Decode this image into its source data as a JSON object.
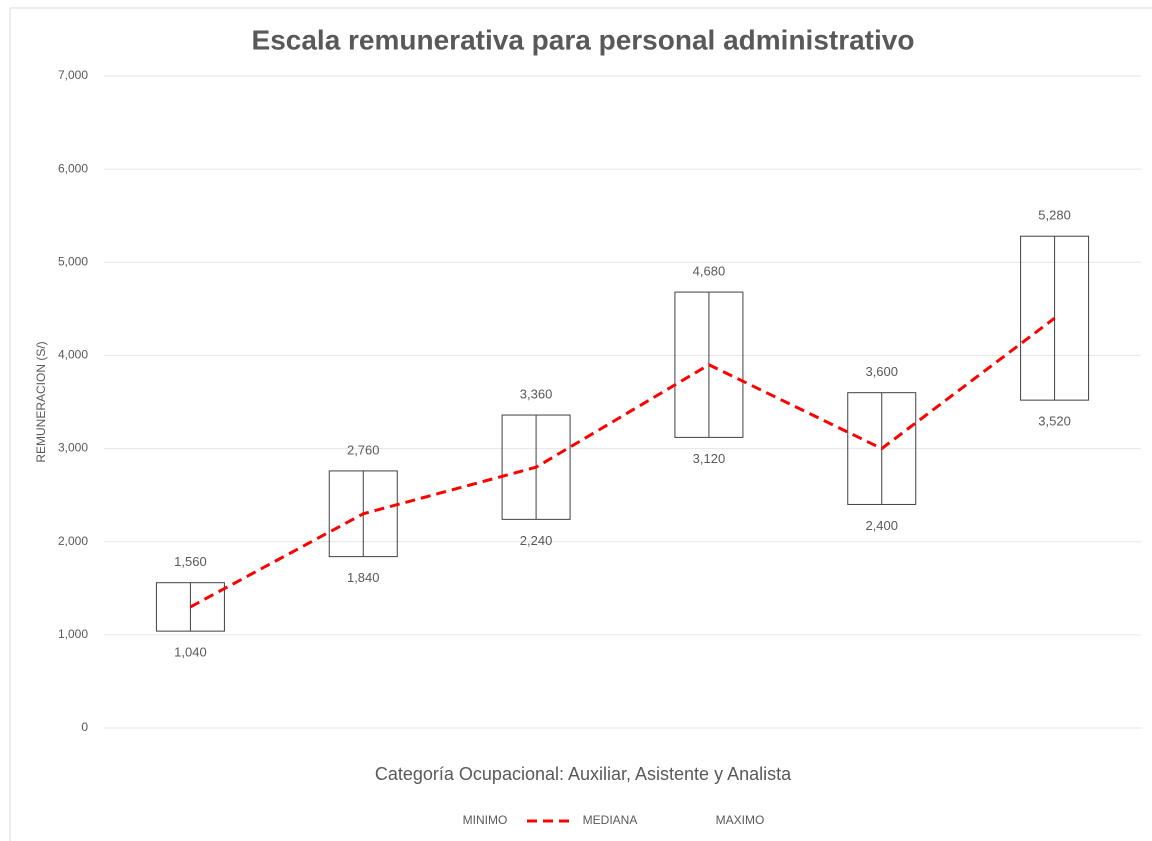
{
  "chart_data": {
    "type": "range-box",
    "title": "Escala remunerativa para personal administrativo",
    "x_label": "Categoría Ocupacional: Auxiliar, Asistente y Analista",
    "y_label": "REMUNERACION (S/)",
    "categories": [
      null,
      null,
      null,
      null,
      null,
      null
    ],
    "series": [
      {
        "name": "MINIMO",
        "color": "#404040",
        "values": [
          1040,
          1840,
          2240,
          3120,
          2400,
          3520
        ],
        "value_labels": [
          "1,040",
          "1,840",
          "2,240",
          "3,120",
          "2,400",
          "3,520"
        ]
      },
      {
        "name": "MEDIANA",
        "color": "#ff0000",
        "values": [
          1300,
          2300,
          2800,
          3900,
          3000,
          4400
        ]
      },
      {
        "name": "MAXIMO",
        "color": "#404040",
        "values": [
          1560,
          2760,
          3360,
          4680,
          3600,
          5280
        ],
        "value_labels": [
          "1,560",
          "2,760",
          "3,360",
          "4,680",
          "3,600",
          "5,280"
        ]
      }
    ],
    "ylim": [
      0,
      7000
    ],
    "yticks": [
      0,
      {
        "value": 1000,
        "label": "1,000"
      },
      {
        "value": 2000,
        "label": "2,000"
      },
      {
        "value": 3000,
        "label": "3,000"
      },
      {
        "value": 4000,
        "label": "4,000"
      },
      {
        "value": 5000,
        "label": "5,000"
      },
      {
        "value": 6000,
        "label": "6,000"
      },
      {
        "value": 7000,
        "label": "7,000"
      }
    ],
    "grid": true,
    "legend": "bottom"
  }
}
